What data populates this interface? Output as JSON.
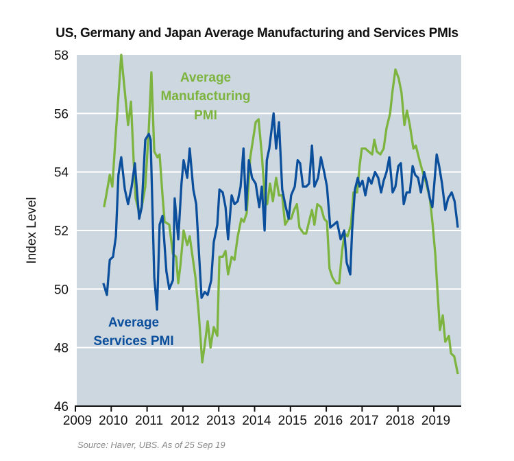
{
  "chart_data": {
    "type": "line",
    "title": "US, Germany and Japan Average Manufacturing and Services PMIs",
    "ylabel": "Index Level",
    "xlabel": "",
    "source": "Source: Haver, UBS. As of 25 Sep 19",
    "xlim": [
      2009,
      2019.75
    ],
    "ylim": [
      46,
      58
    ],
    "x_ticks": [
      "2009",
      "2010",
      "2011",
      "2012",
      "2013",
      "2014",
      "2015",
      "2016",
      "2017",
      "2018",
      "2019"
    ],
    "y_ticks": [
      "46",
      "48",
      "50",
      "52",
      "54",
      "56",
      "58"
    ],
    "grid": "horizontal",
    "background": "#cdd7e0",
    "series": [
      {
        "name": "Average Manufacturing PMI",
        "color": "#7db43f",
        "x": [
          2009.8,
          2009.86,
          2009.96,
          2010.03,
          2010.11,
          2010.28,
          2010.47,
          2010.55,
          2010.63,
          2010.68,
          2010.78,
          2010.85,
          2010.95,
          2011.05,
          2011.12,
          2011.2,
          2011.29,
          2011.35,
          2011.43,
          2011.49,
          2011.62,
          2011.72,
          2011.81,
          2011.87,
          2011.93,
          2012.02,
          2012.12,
          2012.19,
          2012.35,
          2012.44,
          2012.54,
          2012.61,
          2012.69,
          2012.77,
          2012.86,
          2012.96,
          2013.02,
          2013.11,
          2013.19,
          2013.26,
          2013.36,
          2013.44,
          2013.53,
          2013.63,
          2013.7,
          2013.78,
          2013.88,
          2014.03,
          2014.11,
          2014.2,
          2014.3,
          2014.35,
          2014.43,
          2014.51,
          2014.6,
          2014.68,
          2014.77,
          2014.85,
          2014.95,
          2015.02,
          2015.1,
          2015.18,
          2015.25,
          2015.37,
          2015.44,
          2015.54,
          2015.6,
          2015.67,
          2015.75,
          2015.85,
          2015.94,
          2016.02,
          2016.09,
          2016.17,
          2016.27,
          2016.36,
          2016.44,
          2016.51,
          2016.59,
          2016.69,
          2016.76,
          2016.86,
          2016.93,
          2016.99,
          2017.09,
          2017.18,
          2017.28,
          2017.34,
          2017.41,
          2017.51,
          2017.6,
          2017.68,
          2017.78,
          2017.85,
          2017.93,
          2018.02,
          2018.1,
          2018.18,
          2018.25,
          2018.33,
          2018.43,
          2018.5,
          2018.6,
          2018.69,
          2018.79,
          2018.89,
          2018.96,
          2019.04,
          2019.1,
          2019.17,
          2019.25,
          2019.32,
          2019.42,
          2019.48,
          2019.57,
          2019.67
        ],
        "y": [
          52.8,
          53.2,
          53.9,
          53.5,
          55.0,
          58.0,
          55.6,
          56.4,
          54.3,
          53.1,
          52.6,
          52.8,
          53.5,
          55.5,
          57.4,
          54.7,
          54.5,
          54.6,
          53.2,
          52.3,
          52.2,
          51.2,
          51.1,
          50.2,
          50.8,
          52.0,
          51.5,
          51.8,
          50.4,
          49.2,
          47.5,
          48.1,
          48.9,
          48.0,
          48.7,
          48.4,
          51.1,
          51.1,
          51.3,
          50.5,
          51.1,
          51.0,
          51.8,
          52.4,
          52.3,
          52.6,
          54.5,
          55.7,
          55.8,
          54.6,
          52.9,
          52.9,
          53.6,
          53.0,
          53.8,
          53.2,
          53.2,
          52.2,
          52.4,
          52.4,
          52.7,
          52.9,
          52.1,
          51.9,
          51.9,
          52.4,
          52.7,
          52.2,
          52.9,
          52.8,
          52.4,
          52.3,
          50.7,
          50.4,
          50.2,
          50.2,
          51.3,
          51.9,
          51.8,
          52.2,
          53.3,
          53.3,
          54.2,
          54.8,
          54.8,
          54.7,
          54.6,
          55.1,
          54.7,
          54.6,
          54.8,
          55.5,
          56.0,
          56.8,
          57.5,
          57.2,
          56.7,
          55.6,
          56.1,
          55.6,
          54.8,
          54.9,
          54.4,
          54.0,
          53.6,
          53.1,
          52.3,
          51.2,
          50.0,
          48.6,
          49.1,
          48.2,
          48.4,
          47.8,
          47.7,
          47.1
        ]
      },
      {
        "name": "Average Services PMI",
        "color": "#0b4f9c",
        "x": [
          2009.78,
          2009.88,
          2009.96,
          2010.05,
          2010.13,
          2010.2,
          2010.28,
          2010.38,
          2010.47,
          2010.57,
          2010.66,
          2010.74,
          2010.78,
          2010.85,
          2010.95,
          2011.05,
          2011.1,
          2011.2,
          2011.28,
          2011.35,
          2011.43,
          2011.54,
          2011.62,
          2011.72,
          2011.77,
          2011.87,
          2011.96,
          2012.02,
          2012.12,
          2012.19,
          2012.29,
          2012.37,
          2012.44,
          2012.52,
          2012.61,
          2012.69,
          2012.79,
          2012.86,
          2012.96,
          2013.02,
          2013.11,
          2013.19,
          2013.26,
          2013.36,
          2013.44,
          2013.53,
          2013.61,
          2013.69,
          2013.76,
          2013.84,
          2013.93,
          2014.03,
          2014.13,
          2014.2,
          2014.28,
          2014.34,
          2014.41,
          2014.53,
          2014.6,
          2014.68,
          2014.77,
          2014.87,
          2014.95,
          2015.02,
          2015.12,
          2015.2,
          2015.27,
          2015.35,
          2015.44,
          2015.52,
          2015.6,
          2015.67,
          2015.77,
          2015.85,
          2015.94,
          2016.02,
          2016.11,
          2016.21,
          2016.3,
          2016.4,
          2016.5,
          2016.57,
          2016.67,
          2016.72,
          2016.8,
          2016.88,
          2016.93,
          2017.01,
          2017.09,
          2017.18,
          2017.26,
          2017.36,
          2017.45,
          2017.53,
          2017.6,
          2017.68,
          2017.76,
          2017.85,
          2017.93,
          2018.01,
          2018.08,
          2018.16,
          2018.24,
          2018.33,
          2018.41,
          2018.48,
          2018.56,
          2018.64,
          2018.73,
          2018.81,
          2018.89,
          2018.96,
          2019.08,
          2019.15,
          2019.23,
          2019.32,
          2019.4,
          2019.5,
          2019.58,
          2019.67
        ],
        "y": [
          50.2,
          49.8,
          51.0,
          51.1,
          51.8,
          53.9,
          54.5,
          53.4,
          52.9,
          53.5,
          54.3,
          53.0,
          52.4,
          52.8,
          55.1,
          55.3,
          55.1,
          50.4,
          49.3,
          52.2,
          52.5,
          50.6,
          50.0,
          50.3,
          53.1,
          51.7,
          53.6,
          54.4,
          53.8,
          54.8,
          53.4,
          52.9,
          51.4,
          49.7,
          49.9,
          49.8,
          50.3,
          51.6,
          52.2,
          53.4,
          53.3,
          52.8,
          51.7,
          53.2,
          52.9,
          53.0,
          53.5,
          54.8,
          52.7,
          54.4,
          53.8,
          53.6,
          52.8,
          53.5,
          52.0,
          54.4,
          54.8,
          56.0,
          54.8,
          55.7,
          53.4,
          52.8,
          52.4,
          53.2,
          53.5,
          54.4,
          54.3,
          53.5,
          53.5,
          53.6,
          54.9,
          53.5,
          53.8,
          54.5,
          54.0,
          53.5,
          52.1,
          52.2,
          52.3,
          51.7,
          52.0,
          50.9,
          50.5,
          52.0,
          53.4,
          53.8,
          53.5,
          53.7,
          53.2,
          53.8,
          53.6,
          54.0,
          53.8,
          53.3,
          53.7,
          54.0,
          54.5,
          53.3,
          53.5,
          54.2,
          54.3,
          52.9,
          53.3,
          53.3,
          54.2,
          53.9,
          53.8,
          53.3,
          54.0,
          53.6,
          53.1,
          52.8,
          54.6,
          54.2,
          53.6,
          52.7,
          53.1,
          53.3,
          53.0,
          52.1
        ]
      }
    ],
    "annotations": {
      "manufacturing": [
        "Average",
        "Manufacturing",
        "PMI"
      ],
      "services": [
        "Average",
        "Services PMI"
      ]
    }
  }
}
